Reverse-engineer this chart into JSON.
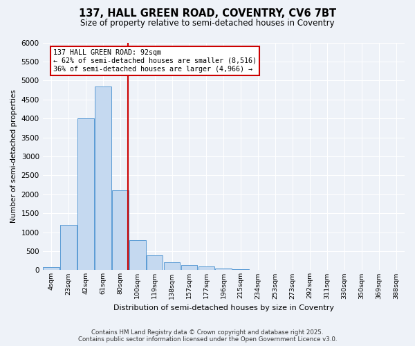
{
  "title_line1": "137, HALL GREEN ROAD, COVENTRY, CV6 7BT",
  "title_line2": "Size of property relative to semi-detached houses in Coventry",
  "xlabel": "Distribution of semi-detached houses by size in Coventry",
  "ylabel": "Number of semi-detached properties",
  "bin_labels": [
    "4sqm",
    "23sqm",
    "42sqm",
    "61sqm",
    "80sqm",
    "100sqm",
    "119sqm",
    "138sqm",
    "157sqm",
    "177sqm",
    "196sqm",
    "215sqm",
    "234sqm",
    "253sqm",
    "273sqm",
    "292sqm",
    "311sqm",
    "330sqm",
    "350sqm",
    "369sqm",
    "388sqm"
  ],
  "bar_values": [
    75,
    1200,
    4000,
    4850,
    2100,
    800,
    390,
    200,
    140,
    100,
    50,
    30,
    15,
    8,
    4,
    2,
    1,
    1,
    0,
    0,
    0
  ],
  "bar_color": "#c5d9f0",
  "bar_edge_color": "#5b9bd5",
  "annotation_text": "137 HALL GREEN ROAD: 92sqm\n← 62% of semi-detached houses are smaller (8,516)\n36% of semi-detached houses are larger (4,966) →",
  "ylim": [
    0,
    6000
  ],
  "yticks": [
    0,
    500,
    1000,
    1500,
    2000,
    2500,
    3000,
    3500,
    4000,
    4500,
    5000,
    5500,
    6000
  ],
  "footer_line1": "Contains HM Land Registry data © Crown copyright and database right 2025.",
  "footer_line2": "Contains public sector information licensed under the Open Government Licence v3.0.",
  "background_color": "#eef2f8",
  "grid_color": "#ffffff",
  "vline_color": "#cc0000",
  "vline_x": 4.45
}
